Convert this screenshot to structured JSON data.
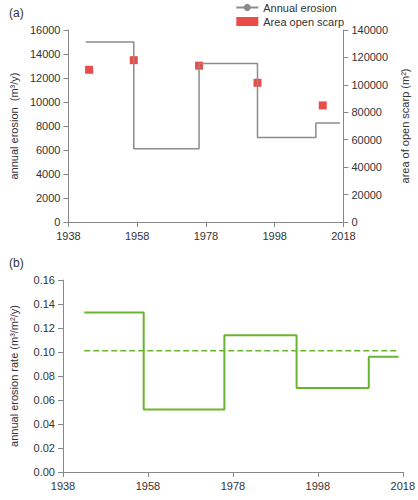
{
  "chart_data": [
    {
      "type": "line",
      "title": "(a)",
      "x_label": null,
      "y_label": "annual erosion  (m³/y)",
      "y2_label": "area of open scarp (m²)",
      "xlim": [
        1938,
        2018
      ],
      "xticks": [
        1938,
        1958,
        1978,
        1998,
        2018
      ],
      "ylim": [
        0,
        16000
      ],
      "yticks": [
        0,
        2000,
        4000,
        6000,
        8000,
        10000,
        12000,
        14000,
        16000
      ],
      "y2lim": [
        0,
        140000
      ],
      "y2ticks": [
        0,
        20000,
        40000,
        60000,
        80000,
        100000,
        120000,
        140000
      ],
      "grid": false,
      "legend": "top-right",
      "series": [
        {
          "name": "Annual erosion",
          "type": "step",
          "color": "#8c8c8c",
          "x": [
            1943,
            1957,
            1976,
            1993,
            2010,
            2017
          ],
          "values": [
            15000,
            6100,
            13200,
            7050,
            8250,
            8250
          ]
        },
        {
          "name": "Area open scarp",
          "type": "scatter",
          "marker": "square",
          "color": "#e3201b",
          "axis": "y2",
          "x": [
            1944,
            1957,
            1976,
            1993,
            2012
          ],
          "values": [
            111000,
            118000,
            114000,
            101500,
            85000
          ]
        }
      ]
    },
    {
      "type": "line",
      "title": "(b)",
      "y_label": "annual erosion rate (m³/m²/y)",
      "xlim": [
        1938,
        2018
      ],
      "xticks": [
        1938,
        1958,
        1978,
        1998,
        2018
      ],
      "ylim": [
        0,
        0.16
      ],
      "yticks": [
        {
          "value": 0,
          "label": "0.00"
        },
        {
          "value": 0.02,
          "label": "0.02"
        },
        {
          "value": 0.04,
          "label": "0.04"
        },
        {
          "value": 0.06,
          "label": "0.06"
        },
        {
          "value": 0.08,
          "label": "0.08"
        },
        {
          "value": 0.1,
          "label": "0.10"
        },
        {
          "value": 0.12,
          "label": "0.12"
        },
        {
          "value": 0.14,
          "label": "0.14"
        },
        {
          "value": 0.16,
          "label": "0.16"
        }
      ],
      "grid": false,
      "series": [
        {
          "type": "step",
          "color": "#6ab52f",
          "x": [
            1943,
            1957,
            1976,
            1993,
            2010,
            2017
          ],
          "values": [
            0.133,
            0.052,
            0.114,
            0.07,
            0.096,
            0.096
          ]
        },
        {
          "type": "line",
          "line_style": "dashed",
          "color": "#6ab52f",
          "x": [
            1943,
            2017
          ],
          "values": [
            0.101,
            0.101
          ]
        }
      ]
    }
  ]
}
